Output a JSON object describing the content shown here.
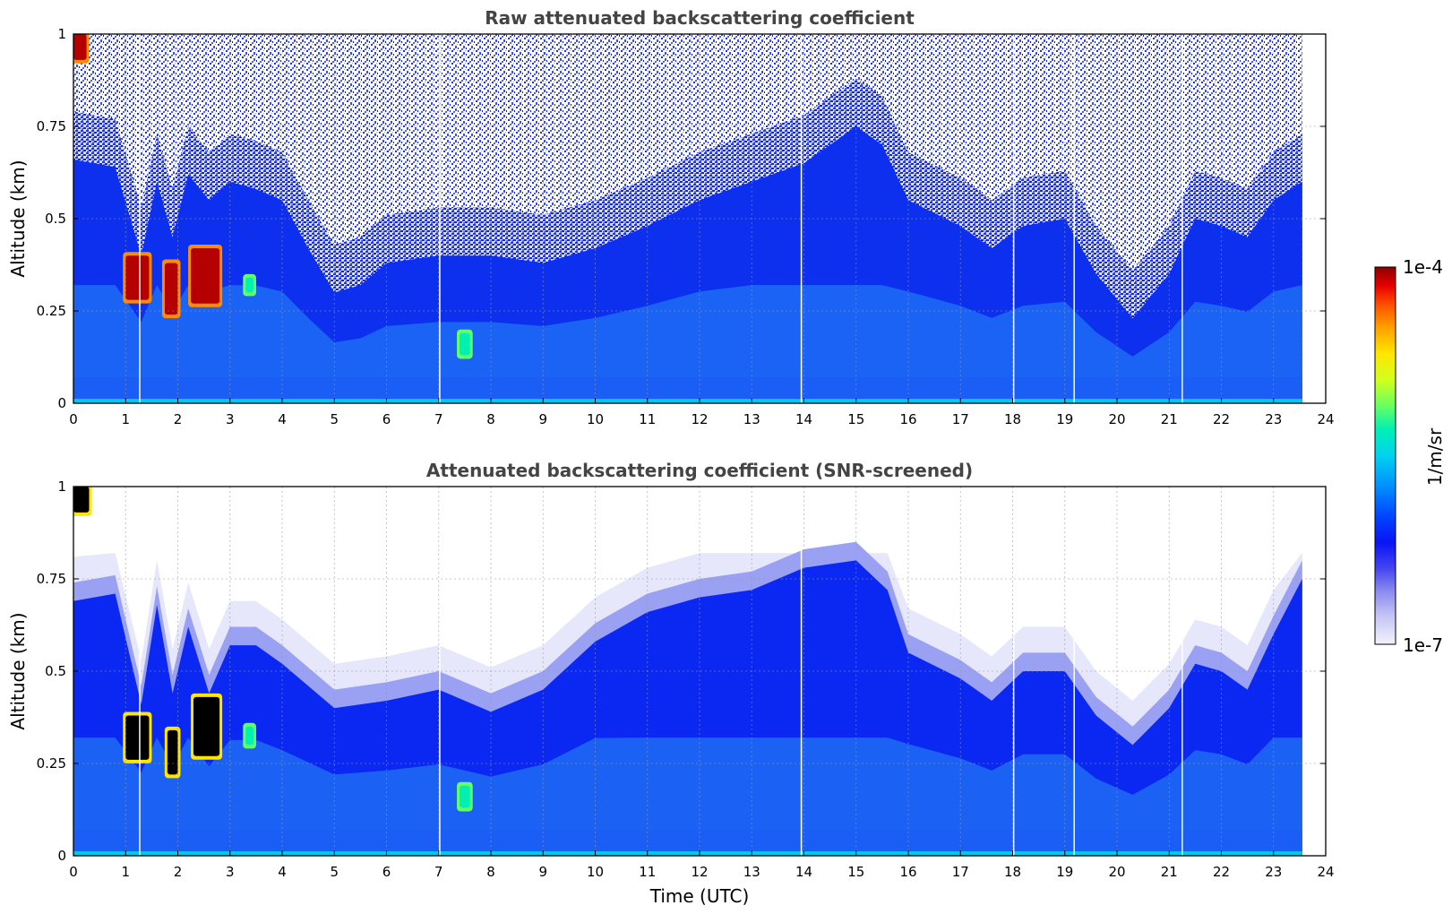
{
  "chart_data": [
    {
      "type": "heatmap",
      "title": "Raw attenuated backscattering coefficient",
      "xlabel": "",
      "ylabel": "Altitude (km)",
      "xlim": [
        0,
        24
      ],
      "ylim": [
        0,
        1
      ],
      "x_ticks": [
        "0",
        "1",
        "2",
        "3",
        "4",
        "5",
        "6",
        "7",
        "8",
        "9",
        "10",
        "11",
        "12",
        "13",
        "14",
        "15",
        "16",
        "17",
        "18",
        "19",
        "20",
        "21",
        "22",
        "23",
        "24"
      ],
      "y_ticks": [
        "0",
        "0.25",
        "0.5",
        "0.75",
        "1"
      ],
      "grid": true,
      "data_end_time": 23.55,
      "color_scale": "log",
      "value_units": "1/m/sr",
      "top_of_noise_free_layer_km": [
        [
          0,
          0.66
        ],
        [
          0.8,
          0.64
        ],
        [
          1.3,
          0.4
        ],
        [
          1.6,
          0.6
        ],
        [
          1.9,
          0.45
        ],
        [
          2.2,
          0.62
        ],
        [
          2.6,
          0.55
        ],
        [
          3.0,
          0.6
        ],
        [
          3.5,
          0.58
        ],
        [
          4.0,
          0.55
        ],
        [
          4.5,
          0.42
        ],
        [
          5.0,
          0.3
        ],
        [
          5.5,
          0.32
        ],
        [
          6.0,
          0.38
        ],
        [
          7.0,
          0.4
        ],
        [
          8.0,
          0.4
        ],
        [
          9.0,
          0.38
        ],
        [
          10.0,
          0.42
        ],
        [
          11.0,
          0.48
        ],
        [
          12.0,
          0.55
        ],
        [
          13.0,
          0.6
        ],
        [
          14.0,
          0.65
        ],
        [
          15.0,
          0.75
        ],
        [
          15.5,
          0.7
        ],
        [
          16.0,
          0.55
        ],
        [
          17.0,
          0.48
        ],
        [
          17.6,
          0.42
        ],
        [
          18.2,
          0.48
        ],
        [
          19.0,
          0.5
        ],
        [
          19.6,
          0.35
        ],
        [
          20.3,
          0.23
        ],
        [
          21.0,
          0.35
        ],
        [
          21.5,
          0.5
        ],
        [
          22.0,
          0.48
        ],
        [
          22.5,
          0.45
        ],
        [
          23.0,
          0.55
        ],
        [
          23.55,
          0.6
        ]
      ],
      "cloud_patches": [
        {
          "t": [
            1.0,
            1.45
          ],
          "alt_km": [
            0.28,
            0.4
          ],
          "level": "high"
        },
        {
          "t": [
            1.75,
            2.0
          ],
          "alt_km": [
            0.24,
            0.38
          ],
          "level": "high"
        },
        {
          "t": [
            2.25,
            2.8
          ],
          "alt_km": [
            0.27,
            0.42
          ],
          "level": "high"
        },
        {
          "t": [
            3.3,
            3.45
          ],
          "alt_km": [
            0.3,
            0.34
          ],
          "level": "mid"
        },
        {
          "t": [
            0.0,
            0.25
          ],
          "alt_km": [
            0.93,
            1.0
          ],
          "level": "high"
        },
        {
          "t": [
            7.4,
            7.6
          ],
          "alt_km": [
            0.13,
            0.19
          ],
          "level": "mid"
        }
      ],
      "clear_columns_utc": [
        1.27,
        7.02,
        13.95,
        18.02,
        19.18,
        21.25
      ]
    },
    {
      "type": "heatmap",
      "title": "Attenuated backscattering coefficient (SNR-screened)",
      "xlabel": "Time (UTC)",
      "ylabel": "Altitude (km)",
      "xlim": [
        0,
        24
      ],
      "ylim": [
        0,
        1
      ],
      "x_ticks": [
        "0",
        "1",
        "2",
        "3",
        "4",
        "5",
        "6",
        "7",
        "8",
        "9",
        "10",
        "11",
        "12",
        "13",
        "14",
        "15",
        "16",
        "17",
        "18",
        "19",
        "20",
        "21",
        "22",
        "23",
        "24"
      ],
      "y_ticks": [
        "0",
        "0.25",
        "0.5",
        "0.75",
        "1"
      ],
      "grid": true,
      "data_end_time": 23.55,
      "color_scale": "log",
      "value_units": "1/m/sr",
      "top_of_signal_km": [
        [
          0,
          0.69
        ],
        [
          0.8,
          0.71
        ],
        [
          1.3,
          0.41
        ],
        [
          1.6,
          0.68
        ],
        [
          1.9,
          0.44
        ],
        [
          2.2,
          0.62
        ],
        [
          2.6,
          0.44
        ],
        [
          3.0,
          0.57
        ],
        [
          3.5,
          0.57
        ],
        [
          4.0,
          0.52
        ],
        [
          4.5,
          0.46
        ],
        [
          5.0,
          0.4
        ],
        [
          6.0,
          0.42
        ],
        [
          7.0,
          0.45
        ],
        [
          8.0,
          0.39
        ],
        [
          9.0,
          0.45
        ],
        [
          10.0,
          0.58
        ],
        [
          11.0,
          0.66
        ],
        [
          12.0,
          0.7
        ],
        [
          13.0,
          0.72
        ],
        [
          14.0,
          0.78
        ],
        [
          15.0,
          0.8
        ],
        [
          15.6,
          0.72
        ],
        [
          16.0,
          0.55
        ],
        [
          17.0,
          0.48
        ],
        [
          17.6,
          0.42
        ],
        [
          18.2,
          0.5
        ],
        [
          19.0,
          0.5
        ],
        [
          19.6,
          0.38
        ],
        [
          20.3,
          0.3
        ],
        [
          21.0,
          0.4
        ],
        [
          21.5,
          0.52
        ],
        [
          22.0,
          0.5
        ],
        [
          22.5,
          0.45
        ],
        [
          23.0,
          0.6
        ],
        [
          23.55,
          0.75
        ]
      ],
      "screened_layer_top_km": 0.82,
      "cloud_patches": [
        {
          "t": [
            1.0,
            1.45
          ],
          "alt_km": [
            0.26,
            0.38
          ],
          "level": "saturated"
        },
        {
          "t": [
            1.8,
            2.0
          ],
          "alt_km": [
            0.22,
            0.34
          ],
          "level": "saturated"
        },
        {
          "t": [
            2.3,
            2.8
          ],
          "alt_km": [
            0.27,
            0.43
          ],
          "level": "saturated"
        },
        {
          "t": [
            3.3,
            3.45
          ],
          "alt_km": [
            0.3,
            0.35
          ],
          "level": "mid"
        },
        {
          "t": [
            0.0,
            0.3
          ],
          "alt_km": [
            0.93,
            1.0
          ],
          "level": "saturated"
        },
        {
          "t": [
            7.4,
            7.6
          ],
          "alt_km": [
            0.13,
            0.19
          ],
          "level": "mid"
        }
      ],
      "clear_columns_utc": [
        1.27,
        7.02,
        13.95,
        18.02,
        19.18,
        21.25
      ]
    }
  ],
  "colorbar": {
    "label": "1/m/sr",
    "max_label": "1e-4",
    "min_label": "1e-7",
    "colors": [
      "#f2f2fb",
      "#c8c8f5",
      "#8c8cf0",
      "#4646f0",
      "#0a14f5",
      "#0046ff",
      "#0090ff",
      "#00d2f0",
      "#00f0b4",
      "#64ff64",
      "#d2ff1e",
      "#ffe600",
      "#ffa000",
      "#ff5000",
      "#e60000",
      "#8c0000"
    ]
  }
}
